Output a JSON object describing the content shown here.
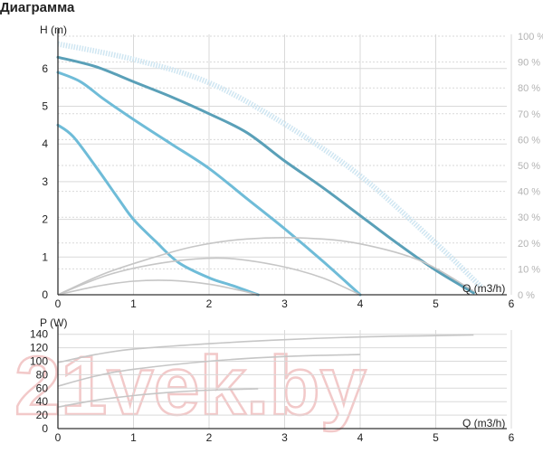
{
  "title": "Диаграмма",
  "watermark": "21vek.by",
  "colors": {
    "hq_max": "#5aa0b8",
    "hq_mid": "#6fbcd8",
    "hq_min": "#6fbcd8",
    "efficiency": "#cfe6f2",
    "power": "#c6c6c6",
    "grid": "#d9d9d9"
  },
  "chart_data": [
    {
      "type": "line",
      "xlabel": "Q (m3/h)",
      "ylabel": "H (m)",
      "xlim": [
        0,
        6
      ],
      "ylim": [
        0,
        7
      ],
      "x_ticks": [
        "0",
        "1",
        "2",
        "3",
        "4",
        "5",
        "6"
      ],
      "y_ticks": [
        "0",
        "1",
        "2",
        "3",
        "4",
        "5",
        "6"
      ],
      "y2_ticks": [
        "0 %",
        "10 %",
        "20 %",
        "30 %",
        "40 %",
        "50 %",
        "60 %",
        "70 %",
        "80 %",
        "90 %",
        "100 %"
      ],
      "y2lim": [
        0,
        100
      ],
      "grid": true,
      "series": [
        {
          "role": "hq_max",
          "color": "#5aa0b8",
          "axis": "left",
          "points": [
            [
              0,
              6.3
            ],
            [
              0.5,
              6.05
            ],
            [
              1,
              5.65
            ],
            [
              1.5,
              5.25
            ],
            [
              2,
              4.8
            ],
            [
              2.5,
              4.3
            ],
            [
              3,
              3.55
            ],
            [
              3.5,
              2.85
            ],
            [
              4,
              2.1
            ],
            [
              4.5,
              1.35
            ],
            [
              5,
              0.65
            ],
            [
              5.5,
              0.05
            ]
          ]
        },
        {
          "role": "hq_mid",
          "color": "#6fbcd8",
          "axis": "left",
          "points": [
            [
              0,
              5.9
            ],
            [
              0.3,
              5.65
            ],
            [
              0.6,
              5.2
            ],
            [
              1,
              4.65
            ],
            [
              1.5,
              4.0
            ],
            [
              2,
              3.35
            ],
            [
              2.5,
              2.55
            ],
            [
              3,
              1.75
            ],
            [
              3.5,
              0.9
            ],
            [
              4,
              0.0
            ]
          ]
        },
        {
          "role": "hq_min",
          "color": "#6fbcd8",
          "axis": "left",
          "points": [
            [
              0,
              4.5
            ],
            [
              0.2,
              4.2
            ],
            [
              0.5,
              3.4
            ],
            [
              0.8,
              2.55
            ],
            [
              1,
              2.0
            ],
            [
              1.3,
              1.4
            ],
            [
              1.6,
              0.85
            ],
            [
              2,
              0.45
            ],
            [
              2.3,
              0.25
            ],
            [
              2.65,
              0.0
            ]
          ]
        },
        {
          "role": "efficiency",
          "color": "#cfe6f2",
          "axis": "right",
          "points": [
            [
              0,
              97
            ],
            [
              1,
              91
            ],
            [
              2,
              82
            ],
            [
              3,
              66
            ],
            [
              4,
              46
            ],
            [
              5,
              20
            ],
            [
              5.6,
              3
            ]
          ]
        },
        {
          "role": "efficiency_grey_max",
          "color": "#c6c6c6",
          "axis": "left",
          "points": [
            [
              0,
              0
            ],
            [
              0.6,
              0.55
            ],
            [
              1.2,
              0.95
            ],
            [
              1.8,
              1.28
            ],
            [
              2.5,
              1.48
            ],
            [
              3.3,
              1.5
            ],
            [
              4,
              1.35
            ],
            [
              4.8,
              0.9
            ],
            [
              5.5,
              0.1
            ]
          ]
        },
        {
          "role": "efficiency_grey_mid",
          "color": "#c6c6c6",
          "axis": "left",
          "points": [
            [
              0,
              0
            ],
            [
              0.7,
              0.55
            ],
            [
              1.5,
              0.88
            ],
            [
              2.2,
              0.97
            ],
            [
              2.9,
              0.78
            ],
            [
              3.5,
              0.45
            ],
            [
              4,
              0.0
            ]
          ]
        },
        {
          "role": "efficiency_grey_min",
          "color": "#c6c6c6",
          "axis": "left",
          "points": [
            [
              0,
              0
            ],
            [
              0.5,
              0.22
            ],
            [
              1,
              0.36
            ],
            [
              1.5,
              0.38
            ],
            [
              2,
              0.28
            ],
            [
              2.4,
              0.12
            ],
            [
              2.65,
              0.0
            ]
          ]
        }
      ]
    },
    {
      "type": "line",
      "xlabel": "Q (m3/h)",
      "ylabel": "P (W)",
      "xlim": [
        0,
        6
      ],
      "ylim": [
        0,
        150
      ],
      "x_ticks": [
        "0",
        "1",
        "2",
        "3",
        "4",
        "5",
        "6"
      ],
      "y_ticks": [
        "0",
        "20",
        "40",
        "60",
        "80",
        "100",
        "120",
        "140"
      ],
      "grid": true,
      "series": [
        {
          "role": "power_max",
          "color": "#c6c6c6",
          "points": [
            [
              0,
              98
            ],
            [
              0.5,
              110
            ],
            [
              1,
              118
            ],
            [
              2,
              126
            ],
            [
              3,
              132
            ],
            [
              4,
              136
            ],
            [
              5,
              138
            ],
            [
              5.5,
              139
            ]
          ]
        },
        {
          "role": "power_mid",
          "color": "#c6c6c6",
          "points": [
            [
              0,
              63
            ],
            [
              0.5,
              78
            ],
            [
              1,
              88
            ],
            [
              2,
              100
            ],
            [
              3,
              107
            ],
            [
              4,
              110
            ]
          ]
        },
        {
          "role": "power_min",
          "color": "#c6c6c6",
          "points": [
            [
              0,
              32
            ],
            [
              0.5,
              42
            ],
            [
              1,
              49
            ],
            [
              1.5,
              54
            ],
            [
              2,
              57
            ],
            [
              2.65,
              59
            ]
          ]
        }
      ]
    }
  ]
}
